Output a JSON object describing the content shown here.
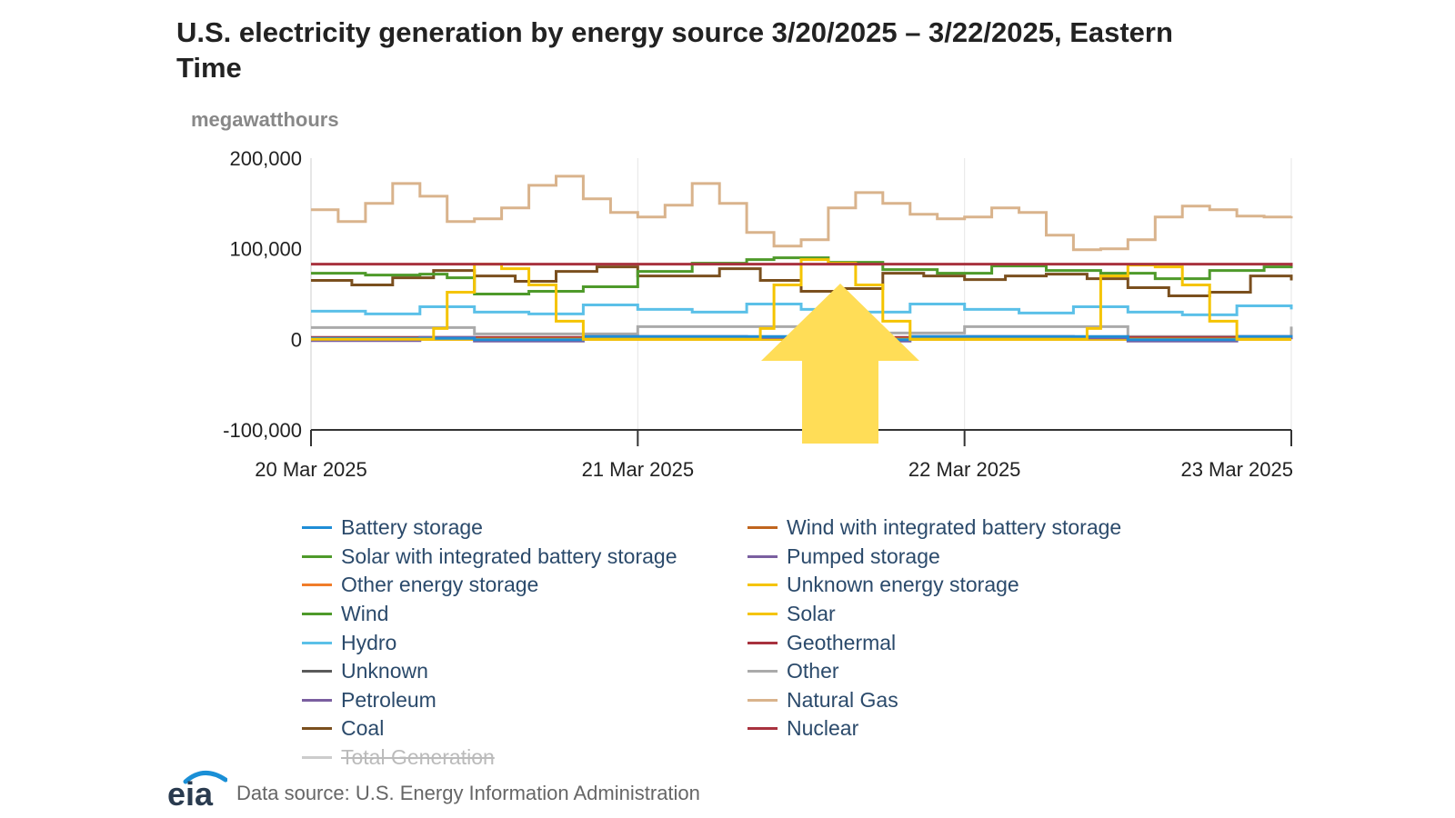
{
  "chart_data": {
    "type": "line",
    "title": "U.S. electricity generation by energy source 3/20/2025 – 3/22/2025, Eastern Time",
    "ylabel": "megawatthours",
    "ylim": [
      -100000,
      200000
    ],
    "y_ticks": [
      200000,
      100000,
      0,
      -100000
    ],
    "y_tick_labels": [
      "200,000",
      "100,000",
      "0",
      "-100,000"
    ],
    "xlim": [
      "2025-03-20",
      "2025-03-23"
    ],
    "x_ticks": [
      "2025-03-20",
      "2025-03-21",
      "2025-03-22",
      "2025-03-23"
    ],
    "x_tick_labels": [
      "20 Mar 2025",
      "21 Mar 2025",
      "22 Mar 2025",
      "23 Mar 2025"
    ],
    "grid": "vertical",
    "legend_position": "bottom",
    "series": [
      {
        "name": "Battery storage",
        "color": "#1f8dd6",
        "visible": true,
        "x": [
          "2025-03-20T00:00",
          "2025-03-20T12:00",
          "2025-03-20T20:00",
          "2025-03-21T12:00",
          "2025-03-21T20:00",
          "2025-03-22T12:00",
          "2025-03-22T20:00",
          "2025-03-23T00:00"
        ],
        "values": [
          1000,
          -500,
          3000,
          -500,
          3000,
          -500,
          3000,
          2000
        ]
      },
      {
        "name": "Wind with integrated battery storage",
        "color": "#c0651e",
        "visible": true,
        "x": [
          "2025-03-20T00:00",
          "2025-03-23T00:00"
        ],
        "values": [
          100,
          100
        ]
      },
      {
        "name": "Solar with integrated battery storage",
        "color": "#4e9a2a",
        "visible": true,
        "x": [
          "2025-03-20T00:00",
          "2025-03-23T00:00"
        ],
        "values": [
          200,
          200
        ]
      },
      {
        "name": "Pumped storage",
        "color": "#7a5fa0",
        "visible": true,
        "x": [
          "2025-03-20T00:00",
          "2025-03-20T08:00",
          "2025-03-20T12:00",
          "2025-03-20T20:00",
          "2025-03-21T08:00",
          "2025-03-21T12:00",
          "2025-03-21T20:00",
          "2025-03-22T08:00",
          "2025-03-22T12:00",
          "2025-03-22T20:00",
          "2025-03-23T00:00"
        ],
        "values": [
          -1500,
          2000,
          -2000,
          3000,
          2000,
          -2000,
          3000,
          1500,
          -2000,
          3000,
          0
        ]
      },
      {
        "name": "Other energy storage",
        "color": "#f07c2a",
        "visible": true,
        "x": [
          "2025-03-20T00:00",
          "2025-03-23T00:00"
        ],
        "values": [
          0,
          0
        ]
      },
      {
        "name": "Unknown energy storage",
        "color": "#f5c400",
        "visible": true,
        "x": [
          "2025-03-20T00:00",
          "2025-03-23T00:00"
        ],
        "values": [
          0,
          0
        ]
      },
      {
        "name": "Wind",
        "color": "#4e9a2a",
        "visible": true,
        "x": [
          "2025-03-20T00:00",
          "2025-03-20T04:00",
          "2025-03-20T08:00",
          "2025-03-20T10:00",
          "2025-03-20T12:00",
          "2025-03-20T16:00",
          "2025-03-20T20:00",
          "2025-03-21T00:00",
          "2025-03-21T04:00",
          "2025-03-21T08:00",
          "2025-03-21T10:00",
          "2025-03-21T14:00",
          "2025-03-21T18:00",
          "2025-03-21T22:00",
          "2025-03-22T02:00",
          "2025-03-22T06:00",
          "2025-03-22T10:00",
          "2025-03-22T14:00",
          "2025-03-22T18:00",
          "2025-03-22T22:00",
          "2025-03-23T00:00"
        ],
        "values": [
          73000,
          71000,
          72000,
          68000,
          50000,
          53000,
          58000,
          75000,
          84000,
          88000,
          90000,
          85000,
          77000,
          73000,
          81000,
          76000,
          73000,
          67000,
          76000,
          80000,
          84000
        ]
      },
      {
        "name": "Solar",
        "color": "#f5c400",
        "visible": true,
        "x": [
          "2025-03-20T00:00",
          "2025-03-20T08:00",
          "2025-03-20T09:00",
          "2025-03-20T10:00",
          "2025-03-20T12:00",
          "2025-03-20T14:00",
          "2025-03-20T16:00",
          "2025-03-20T18:00",
          "2025-03-20T20:00",
          "2025-03-21T08:00",
          "2025-03-21T09:00",
          "2025-03-21T10:00",
          "2025-03-21T12:00",
          "2025-03-21T14:00",
          "2025-03-21T16:00",
          "2025-03-21T18:00",
          "2025-03-21T20:00",
          "2025-03-22T08:00",
          "2025-03-22T09:00",
          "2025-03-22T10:00",
          "2025-03-22T12:00",
          "2025-03-22T14:00",
          "2025-03-22T16:00",
          "2025-03-22T18:00",
          "2025-03-22T20:00",
          "2025-03-23T00:00"
        ],
        "values": [
          0,
          0,
          12000,
          52000,
          83000,
          78000,
          60000,
          20000,
          0,
          0,
          12000,
          60000,
          88000,
          84000,
          60000,
          20000,
          0,
          0,
          12000,
          70000,
          82000,
          80000,
          60000,
          20000,
          0,
          0
        ]
      },
      {
        "name": "Hydro",
        "color": "#5bc0e8",
        "visible": true,
        "x": [
          "2025-03-20T00:00",
          "2025-03-20T04:00",
          "2025-03-20T08:00",
          "2025-03-20T12:00",
          "2025-03-20T16:00",
          "2025-03-20T20:00",
          "2025-03-21T00:00",
          "2025-03-21T04:00",
          "2025-03-21T08:00",
          "2025-03-21T12:00",
          "2025-03-21T16:00",
          "2025-03-21T20:00",
          "2025-03-22T00:00",
          "2025-03-22T04:00",
          "2025-03-22T08:00",
          "2025-03-22T12:00",
          "2025-03-22T16:00",
          "2025-03-22T20:00",
          "2025-03-23T00:00"
        ],
        "values": [
          31000,
          28000,
          36000,
          30000,
          28000,
          38000,
          33000,
          30000,
          39000,
          33000,
          30000,
          39000,
          33000,
          29000,
          36000,
          30000,
          27000,
          37000,
          33000
        ]
      },
      {
        "name": "Geothermal",
        "color": "#a8323e",
        "visible": true,
        "x": [
          "2025-03-20T00:00",
          "2025-03-23T00:00"
        ],
        "values": [
          2000,
          2000
        ]
      },
      {
        "name": "Unknown",
        "color": "#5a5a5a",
        "visible": true,
        "x": [
          "2025-03-20T00:00",
          "2025-03-23T00:00"
        ],
        "values": [
          500,
          500
        ]
      },
      {
        "name": "Other",
        "color": "#aaaaaa",
        "visible": true,
        "x": [
          "2025-03-20T00:00",
          "2025-03-20T12:00",
          "2025-03-21T00:00",
          "2025-03-21T12:00",
          "2025-03-22T00:00",
          "2025-03-22T12:00",
          "2025-03-23T00:00"
        ],
        "values": [
          13000,
          6000,
          14000,
          7000,
          14000,
          3000,
          14000
        ]
      },
      {
        "name": "Petroleum",
        "color": "#7a5fa0",
        "visible": true,
        "x": [
          "2025-03-20T00:00",
          "2025-03-23T00:00"
        ],
        "values": [
          1000,
          1000
        ]
      },
      {
        "name": "Natural Gas",
        "color": "#d9b38c",
        "visible": true,
        "x": [
          "2025-03-20T00:00",
          "2025-03-20T02:00",
          "2025-03-20T04:00",
          "2025-03-20T06:00",
          "2025-03-20T08:00",
          "2025-03-20T10:00",
          "2025-03-20T12:00",
          "2025-03-20T14:00",
          "2025-03-20T16:00",
          "2025-03-20T18:00",
          "2025-03-20T20:00",
          "2025-03-20T22:00",
          "2025-03-21T00:00",
          "2025-03-21T02:00",
          "2025-03-21T04:00",
          "2025-03-21T06:00",
          "2025-03-21T08:00",
          "2025-03-21T10:00",
          "2025-03-21T12:00",
          "2025-03-21T14:00",
          "2025-03-21T16:00",
          "2025-03-21T18:00",
          "2025-03-21T20:00",
          "2025-03-21T22:00",
          "2025-03-22T00:00",
          "2025-03-22T02:00",
          "2025-03-22T04:00",
          "2025-03-22T06:00",
          "2025-03-22T08:00",
          "2025-03-22T10:00",
          "2025-03-22T12:00",
          "2025-03-22T14:00",
          "2025-03-22T16:00",
          "2025-03-22T18:00",
          "2025-03-22T20:00",
          "2025-03-22T22:00",
          "2025-03-23T00:00"
        ],
        "values": [
          143000,
          130000,
          150000,
          172000,
          158000,
          130000,
          133000,
          145000,
          170000,
          180000,
          155000,
          140000,
          135000,
          148000,
          172000,
          150000,
          118000,
          103000,
          110000,
          145000,
          162000,
          150000,
          138000,
          133000,
          135000,
          145000,
          140000,
          115000,
          99000,
          100000,
          110000,
          135000,
          147000,
          143000,
          136000,
          135000,
          136000
        ]
      },
      {
        "name": "Coal",
        "color": "#7a4f1e",
        "visible": true,
        "x": [
          "2025-03-20T00:00",
          "2025-03-20T03:00",
          "2025-03-20T06:00",
          "2025-03-20T09:00",
          "2025-03-20T12:00",
          "2025-03-20T15:00",
          "2025-03-20T18:00",
          "2025-03-20T21:00",
          "2025-03-21T00:00",
          "2025-03-21T03:00",
          "2025-03-21T06:00",
          "2025-03-21T09:00",
          "2025-03-21T12:00",
          "2025-03-21T15:00",
          "2025-03-21T18:00",
          "2025-03-21T21:00",
          "2025-03-22T00:00",
          "2025-03-22T03:00",
          "2025-03-22T06:00",
          "2025-03-22T09:00",
          "2025-03-22T12:00",
          "2025-03-22T15:00",
          "2025-03-22T18:00",
          "2025-03-22T21:00",
          "2025-03-23T00:00"
        ],
        "values": [
          65000,
          60000,
          68000,
          76000,
          70000,
          64000,
          75000,
          80000,
          70000,
          70000,
          78000,
          65000,
          53000,
          56000,
          73000,
          70000,
          66000,
          70000,
          72000,
          67000,
          57000,
          48000,
          52000,
          70000,
          65000
        ]
      },
      {
        "name": "Nuclear",
        "color": "#a8323e",
        "visible": true,
        "x": [
          "2025-03-20T00:00",
          "2025-03-23T00:00"
        ],
        "values": [
          83000,
          81000
        ]
      },
      {
        "name": "Total Generation",
        "color": "#cccccc",
        "visible": false,
        "x": [],
        "values": []
      }
    ]
  },
  "legend_order": [
    "Battery storage",
    "Wind with integrated battery storage",
    "Solar with integrated battery storage",
    "Pumped storage",
    "Other energy storage",
    "Unknown energy storage",
    "Wind",
    "Solar",
    "Hydro",
    "Geothermal",
    "Unknown",
    "Other",
    "Petroleum",
    "Natural Gas",
    "Coal",
    "Nuclear",
    "Total Generation"
  ],
  "annotation": {
    "arrow_color": "#ffdd57"
  },
  "footer": {
    "logo_text": "eia",
    "source_text": "Data source: U.S. Energy Information Administration"
  }
}
